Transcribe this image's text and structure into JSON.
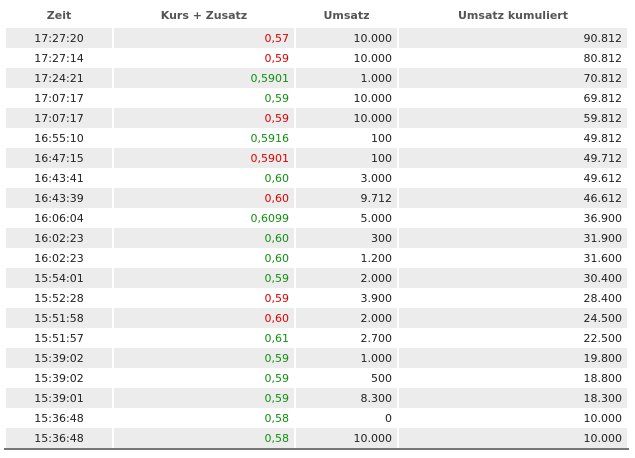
{
  "table": {
    "header": [
      "Zeit",
      "Kurs + Zusatz",
      "Umsatz",
      "Umsatz kumuliert"
    ],
    "rows": [
      [
        "17:27:20",
        "0,57",
        "10.000",
        "90.812"
      ],
      [
        "17:27:14",
        "0,59",
        "10.000",
        "80.812"
      ],
      [
        "17:24:21",
        "0,5901",
        "1.000",
        "70.812"
      ],
      [
        "17:07:17",
        "0,59",
        "10.000",
        "69.812"
      ],
      [
        "17:07:17",
        "0,59",
        "10.000",
        "59.812"
      ],
      [
        "16:55:10",
        "0,5916",
        "100",
        "49.812"
      ],
      [
        "16:47:15",
        "0,5901",
        "100",
        "49.712"
      ],
      [
        "16:43:41",
        "0,60",
        "3.000",
        "49.612"
      ],
      [
        "16:43:39",
        "0,60",
        "9.712",
        "46.612"
      ],
      [
        "16:06:04",
        "0,6099",
        "5.000",
        "36.900"
      ],
      [
        "16:02:23",
        "0,60",
        "300",
        "31.900"
      ],
      [
        "16:02:23",
        "0,60",
        "1.200",
        "31.600"
      ],
      [
        "15:54:01",
        "0,59",
        "2.000",
        "30.400"
      ],
      [
        "15:52:28",
        "0,59",
        "3.900",
        "28.400"
      ],
      [
        "15:51:58",
        "0,60",
        "2.000",
        "24.500"
      ],
      [
        "15:51:57",
        "0,61",
        "2.700",
        "22.500"
      ],
      [
        "15:39:02",
        "0,59",
        "1.000",
        "19.800"
      ],
      [
        "15:39:02",
        "0,59",
        "500",
        "18.800"
      ],
      [
        "15:39:01",
        "0,59",
        "8.300",
        "18.300"
      ],
      [
        "15:36:48",
        "0,58",
        "0",
        "10.000"
      ],
      [
        "15:36:48",
        "0,58",
        "10.000",
        "10.000"
      ]
    ],
    "price_colors": [
      "#e00000",
      "#e00000",
      "#109010",
      "#109010",
      "#e00000",
      "#109010",
      "#e00000",
      "#109010",
      "#e00000",
      "#109010",
      "#109010",
      "#109010",
      "#109010",
      "#e00000",
      "#e00000",
      "#109010",
      "#109010",
      "#109010",
      "#109010",
      "#109010",
      "#109010"
    ]
  }
}
